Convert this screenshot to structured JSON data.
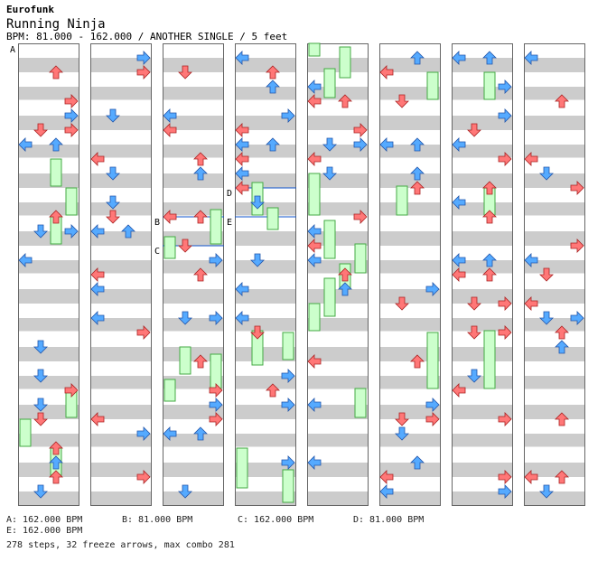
{
  "header": {
    "artist": "Eurofunk",
    "title": "Running Ninja",
    "bpm_line": "BPM: 81.000 - 162.000 / ANOTHER SINGLE / 5 feet"
  },
  "markers": {
    "A": "A",
    "B": "B",
    "C": "C",
    "D": "D",
    "E": "E"
  },
  "footer": {
    "bpm_a": "A: 162.000 BPM",
    "bpm_b": "B: 81.000 BPM",
    "bpm_c": "C: 162.000 BPM",
    "bpm_d": "D: 81.000 BPM",
    "bpm_e": "E: 162.000 BPM",
    "stats": "278 steps, 32 freeze arrows, max combo 281"
  },
  "colors": {
    "blue_arrow": "#55aaff",
    "red_arrow": "#ff7777",
    "freeze_fill": "#ccffcc",
    "freeze_border": "#44aa44",
    "stripe": "#cccccc",
    "column_border": "#666666",
    "bpm_line": "#1155cc"
  },
  "icons": [
    "left-arrow-icon",
    "down-arrow-icon",
    "up-arrow-icon",
    "right-arrow-icon",
    "freeze-arrow-icon"
  ]
}
